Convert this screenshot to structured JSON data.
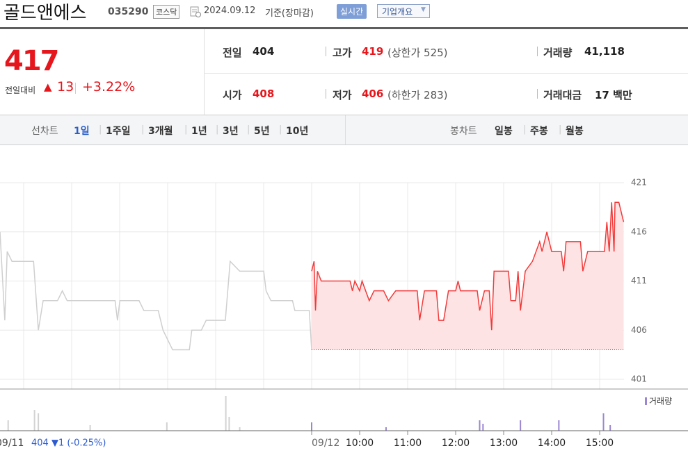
{
  "header": {
    "name": "골드앤에스",
    "code": "035290",
    "market": "코스닥",
    "date": "2024.09.12",
    "basis": "기준(장마감)",
    "realtime": "실시간",
    "overview": "기업개요"
  },
  "quote": {
    "price": "417",
    "change_label": "전일대비",
    "change": "13",
    "change_pct": "+3.22%"
  },
  "stats": [
    {
      "label": "전일",
      "value": "404"
    },
    {
      "label": "고가",
      "value": "419",
      "note": "(상한가 525)"
    },
    {
      "label": "거래량",
      "value": "41,118"
    },
    {
      "label": "시가",
      "value": "408"
    },
    {
      "label": "저가",
      "value": "406",
      "note": "(하한가 283)"
    },
    {
      "label": "거래대금",
      "value": "17 백만"
    }
  ],
  "tabs": {
    "line_label": "선차트",
    "line_periods": [
      "1일",
      "1주일",
      "3개월",
      "1년",
      "3년",
      "5년",
      "10년"
    ],
    "candle_label": "봉차트",
    "candle_periods": [
      "일봉",
      "주봉",
      "월봉"
    ]
  },
  "chart_data": [
    {
      "type": "line",
      "color": "#cfcfcf",
      "xlim": [
        9,
        15.5
      ],
      "ylim": [
        401,
        421
      ],
      "x": [
        9.0,
        9.1,
        9.15,
        9.25,
        9.7,
        9.8,
        9.9,
        10.2,
        10.3,
        10.4,
        11.4,
        11.45,
        11.5,
        11.9,
        12.0,
        12.3,
        12.4,
        12.5,
        12.6,
        12.95,
        13.0,
        13.2,
        13.3,
        13.7,
        13.8,
        14.0,
        14.5,
        14.55,
        14.65,
        15.1,
        15.15,
        15.45,
        15.5
      ],
      "values": [
        416,
        407,
        414,
        413,
        413,
        406,
        409,
        409,
        410,
        409,
        409,
        407,
        409,
        409,
        408,
        408,
        406,
        405,
        404,
        404,
        406,
        406,
        407,
        407,
        413,
        412,
        412,
        410,
        409,
        409,
        408,
        408,
        404
      ]
    },
    {
      "type": "line",
      "color": "#f23a3a",
      "fill": "#fde3e3",
      "baseline": 404,
      "xlim": [
        9,
        15.5
      ],
      "ylim": [
        401,
        421
      ],
      "yticks": [
        401,
        406,
        411,
        416,
        421
      ],
      "xticks": [
        {
          "value": 9,
          "label": "09/12"
        },
        {
          "value": 10,
          "label": "10:00"
        },
        {
          "value": 11,
          "label": "11:00"
        },
        {
          "value": 12,
          "label": "12:00"
        },
        {
          "value": 13,
          "label": "13:00"
        },
        {
          "value": 14,
          "label": "14:00"
        },
        {
          "value": 15,
          "label": "15:00"
        }
      ],
      "x": [
        9.0,
        9.05,
        9.08,
        9.12,
        9.2,
        9.8,
        9.85,
        9.9,
        10.0,
        10.05,
        10.2,
        10.3,
        10.5,
        10.6,
        10.75,
        11.2,
        11.25,
        11.35,
        11.6,
        11.65,
        11.75,
        11.85,
        12.0,
        12.05,
        12.1,
        12.45,
        12.5,
        12.6,
        12.7,
        12.75,
        12.8,
        13.1,
        13.15,
        13.25,
        13.3,
        13.35,
        13.45,
        13.6,
        13.75,
        13.8,
        13.9,
        14.0,
        14.2,
        14.25,
        14.3,
        14.6,
        14.65,
        14.75,
        15.1,
        15.15,
        15.2,
        15.25,
        15.3,
        15.32,
        15.4,
        15.5
      ],
      "values": [
        412,
        413,
        408,
        412,
        411,
        411,
        410,
        411,
        410,
        411,
        409,
        410,
        410,
        409,
        410,
        410,
        407,
        410,
        410,
        407,
        407,
        410,
        410,
        411,
        410,
        410,
        408,
        410,
        410,
        406,
        412,
        412,
        409,
        409,
        412,
        408,
        412,
        413,
        415,
        414,
        416,
        414,
        414,
        412,
        415,
        415,
        412,
        414,
        414,
        417,
        414,
        419,
        414,
        419,
        419,
        417
      ]
    },
    {
      "type": "bar",
      "color": "#d2d2d2",
      "xlim": [
        9,
        15.5
      ],
      "ylim": [
        0,
        6000
      ],
      "x": [
        9.17,
        9.72,
        9.8,
        10.88,
        12.48,
        13.71,
        13.78,
        14.0
      ],
      "values": [
        1500,
        3000,
        2500,
        800,
        1200,
        5000,
        2000,
        500
      ]
    },
    {
      "type": "bar",
      "xlim": [
        9,
        15.5
      ],
      "ylim": [
        0,
        6000
      ],
      "series": [
        {
          "name": "거래량",
          "color": "#9a86d2",
          "x": [
            9.0,
            10.55,
            12.5,
            12.57,
            13.35,
            14.15,
            15.08,
            15.22
          ],
          "values": [
            1200,
            500,
            1500,
            1000,
            1500,
            1500,
            2500,
            800
          ]
        }
      ]
    }
  ],
  "footer": {
    "prev_date": "09/11",
    "prev_summary": "404 ▼1 (-0.25%)"
  }
}
